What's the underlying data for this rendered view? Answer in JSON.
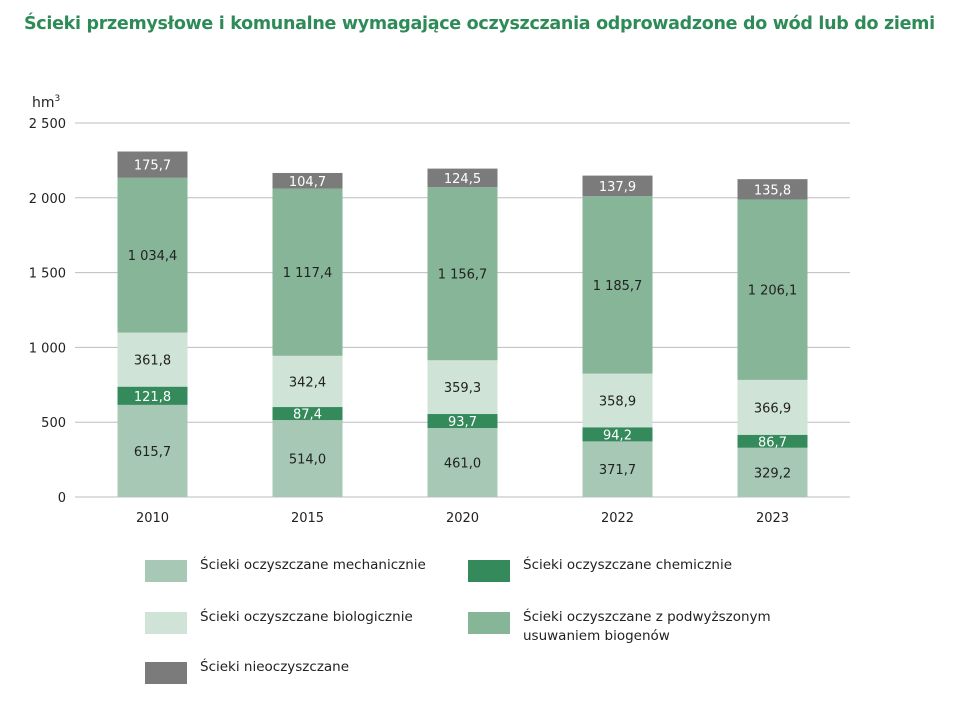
{
  "title": "Ścieki przemysłowe i komunalne wymagające oczyszczania odprowadzone do wód lub do ziemi",
  "chart_data": {
    "type": "bar",
    "stacked": true,
    "title": "Ścieki przemysłowe i komunalne wymagające oczyszczania odprowadzone do wód lub do ziemi",
    "ylabel": "hm3",
    "ylabel_base": "hm",
    "ylabel_sup": "3",
    "xlabel": "",
    "ylim": [
      0,
      2500
    ],
    "yticks": [
      0,
      500,
      1000,
      1500,
      2000,
      2500
    ],
    "ytick_labels": [
      "0",
      "500",
      "1 000",
      "1 500",
      "2 000",
      "2 500"
    ],
    "grid": true,
    "legend_placement": "bottom",
    "categories": [
      "2010",
      "2015",
      "2020",
      "2022",
      "2023"
    ],
    "series": [
      {
        "name": "Ścieki oczyszczane mechanicznie",
        "color": "#a7c8b4",
        "label_color": "#222222",
        "values": [
          615.7,
          514.0,
          461.0,
          371.7,
          329.2
        ],
        "labels": [
          "615,7",
          "514,0",
          "461,0",
          "371,7",
          "329,2"
        ]
      },
      {
        "name": "Ścieki oczyszczane chemicznie",
        "color": "#358a5c",
        "label_color": "#ffffff",
        "values": [
          121.8,
          87.4,
          93.7,
          94.2,
          86.7
        ],
        "labels": [
          "121,8",
          "87,4",
          "93,7",
          "94,2",
          "86,7"
        ]
      },
      {
        "name": "Ścieki oczyszczane biologicznie",
        "color": "#cfe3d6",
        "label_color": "#222222",
        "values": [
          361.8,
          342.4,
          359.3,
          358.9,
          366.9
        ],
        "labels": [
          "361,8",
          "342,4",
          "359,3",
          "358,9",
          "366,9"
        ]
      },
      {
        "name": "Ścieki oczyszczane z podwyższonym usuwaniem biogenów",
        "name_lines": [
          "Ścieki oczyszczane z podwyższonym",
          "usuwaniem biogenów"
        ],
        "color": "#86b598",
        "label_color": "#222222",
        "values": [
          1034.4,
          1117.4,
          1156.7,
          1185.7,
          1206.1
        ],
        "labels": [
          "1 034,4",
          "1 117,4",
          "1 156,7",
          "1 185,7",
          "1 206,1"
        ]
      },
      {
        "name": "Ścieki nieoczyszczane",
        "color": "#7b7b7b",
        "label_color": "#ffffff",
        "values": [
          175.7,
          104.7,
          124.5,
          137.9,
          135.8
        ],
        "labels": [
          "175,7",
          "104,7",
          "124,5",
          "137,9",
          "135,8"
        ]
      }
    ]
  }
}
